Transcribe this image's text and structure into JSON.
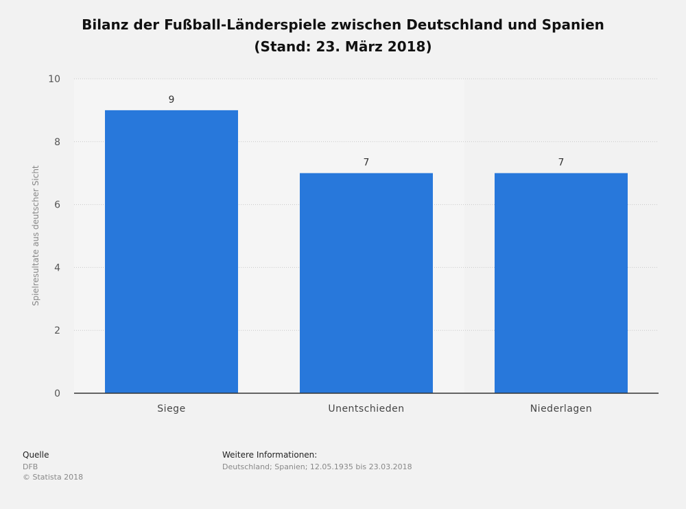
{
  "chart_data": {
    "type": "bar",
    "title": "Bilanz der Fußball-Länderspiele zwischen Deutschland und Spanien",
    "subtitle": "(Stand: 23. März 2018)",
    "categories": [
      "Siege",
      "Unentschieden",
      "Niederlagen"
    ],
    "values": [
      9,
      7,
      7
    ],
    "ylabel": "Spielresultate aus deutscher Sicht",
    "xlabel": "",
    "ylim": [
      0,
      10
    ],
    "yticks": [
      0,
      2,
      4,
      6,
      8,
      10
    ],
    "grid": true,
    "bar_color": "#2878db"
  },
  "footer": {
    "source_label": "Quelle",
    "source": "DFB",
    "copyright": "© Statista 2018",
    "info_label": "Weitere Informationen:",
    "info": "Deutschland; Spanien; 12.05.1935 bis 23.03.2018"
  }
}
